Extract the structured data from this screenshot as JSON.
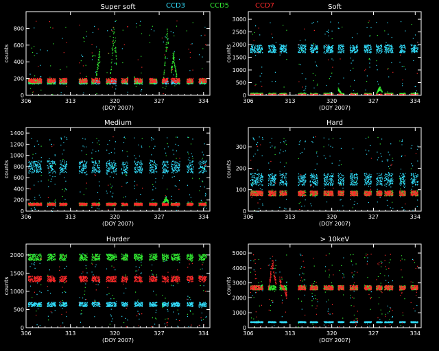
{
  "legend": {
    "entries": [
      {
        "name": "CCD3",
        "color": "#33e0ff"
      },
      {
        "name": "CCD5",
        "color": "#33ee33"
      },
      {
        "name": "CCD7",
        "color": "#ff2a2a"
      }
    ]
  },
  "chart_data": [
    {
      "type": "scatter",
      "title": "Super soft",
      "xlabel": "(DOY 2007)",
      "ylabel": "counts",
      "xlim": [
        306,
        335
      ],
      "ylim": [
        0,
        1000
      ],
      "xticks": [
        306,
        313,
        320,
        327,
        334
      ],
      "yticks": [
        0,
        200,
        400,
        600,
        800
      ],
      "series": [
        {
          "name": "CCD3",
          "level": 160,
          "spread": 22,
          "outlier": 0.05
        },
        {
          "name": "CCD5",
          "level": 170,
          "spread": 30,
          "outlier": 0.06,
          "bumps": [
            [
              317.5,
              400
            ],
            [
              319.8,
              800
            ],
            [
              322.5,
              300
            ],
            [
              328.2,
              700
            ],
            [
              329.2,
              400
            ]
          ]
        },
        {
          "name": "CCD7",
          "level": 180,
          "spread": 28,
          "outlier": 0.03
        }
      ]
    },
    {
      "type": "scatter",
      "title": "Soft",
      "xlabel": "(DOY 2007)",
      "ylabel": "counts",
      "xlim": [
        306,
        335
      ],
      "ylim": [
        0,
        3300
      ],
      "xticks": [
        306,
        313,
        320,
        327,
        334
      ],
      "yticks": [
        0,
        500,
        1000,
        1500,
        2000,
        2500,
        3000
      ],
      "series": [
        {
          "name": "CCD3",
          "level": 1850,
          "spread": 160,
          "outlier": 0.08
        },
        {
          "name": "CCD5",
          "level": 60,
          "spread": 40,
          "outlier": 0.04,
          "bumps": [
            [
              321,
              250
            ],
            [
              328,
              300
            ]
          ]
        },
        {
          "name": "CCD7",
          "level": 40,
          "spread": 25,
          "outlier": 0.02
        }
      ]
    },
    {
      "type": "scatter",
      "title": "Medium",
      "xlabel": "(DOY 2007)",
      "ylabel": "counts",
      "xlim": [
        306,
        335
      ],
      "ylim": [
        0,
        1500
      ],
      "xticks": [
        306,
        313,
        320,
        327,
        334
      ],
      "yticks": [
        0,
        200,
        400,
        600,
        800,
        1000,
        1200,
        1400
      ],
      "series": [
        {
          "name": "CCD3",
          "level": 800,
          "spread": 110,
          "outlier": 0.18
        },
        {
          "name": "CCD5",
          "level": 130,
          "spread": 25,
          "outlier": 0.04,
          "bumps": [
            [
              328,
              120
            ]
          ]
        },
        {
          "name": "CCD7",
          "level": 130,
          "spread": 22,
          "outlier": 0.02
        }
      ]
    },
    {
      "type": "scatter",
      "title": "Hard",
      "xlabel": "(DOY 2007)",
      "ylabel": "counts",
      "xlim": [
        306,
        335
      ],
      "ylim": [
        0,
        390
      ],
      "xticks": [
        306,
        313,
        320,
        327,
        334
      ],
      "yticks": [
        0,
        100,
        200,
        300
      ],
      "series": [
        {
          "name": "CCD3",
          "level": 150,
          "spread": 28,
          "outlier": 0.15
        },
        {
          "name": "CCD5",
          "level": 85,
          "spread": 12,
          "outlier": 0.03
        },
        {
          "name": "CCD7",
          "level": 85,
          "spread": 12,
          "outlier": 0.02
        }
      ]
    },
    {
      "type": "scatter",
      "title": "Harder",
      "xlabel": "(DOY 2007)",
      "ylabel": "counts",
      "xlim": [
        306,
        335
      ],
      "ylim": [
        0,
        2300
      ],
      "xticks": [
        306,
        313,
        320,
        327,
        334
      ],
      "yticks": [
        0,
        500,
        1000,
        1500,
        2000
      ],
      "series": [
        {
          "name": "CCD3",
          "level": 650,
          "spread": 60,
          "outlier": 0.1
        },
        {
          "name": "CCD5",
          "level": 1950,
          "spread": 90,
          "outlier": 0.06
        },
        {
          "name": "CCD7",
          "level": 1350,
          "spread": 80,
          "outlier": 0.05
        }
      ]
    },
    {
      "type": "scatter",
      "title": "> 10keV",
      "xlabel": "(DOY 2007)",
      "ylabel": "counts",
      "xlim": [
        306,
        335
      ],
      "ylim": [
        0,
        5600
      ],
      "xticks": [
        306,
        313,
        320,
        327,
        334
      ],
      "yticks": [
        0,
        1000,
        2000,
        3000,
        4000,
        5000
      ],
      "series": [
        {
          "name": "CCD3",
          "level": 400,
          "spread": 40,
          "outlier": 0.05
        },
        {
          "name": "CCD5",
          "level": 2700,
          "spread": 150,
          "outlier": 0.08
        },
        {
          "name": "CCD7",
          "level": 2700,
          "spread": 150,
          "outlier": 0.08,
          "bumps": [
            [
              310,
              2200
            ],
            [
              311,
              1100
            ],
            [
              312.5,
              -800
            ]
          ]
        }
      ]
    }
  ]
}
